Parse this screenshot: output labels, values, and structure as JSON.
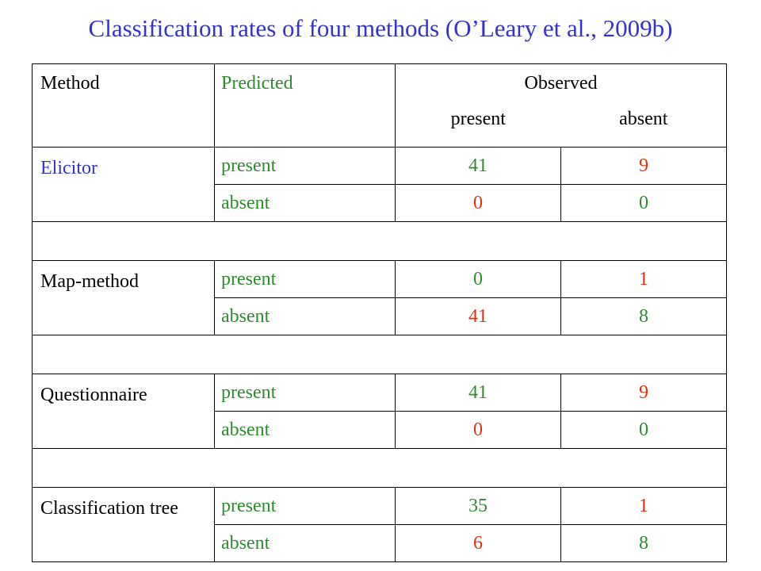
{
  "title": "Classification rates of four methods (O’Leary et al., 2009b)",
  "header": {
    "method": "Method",
    "predicted": "Predicted",
    "observed": "Observed",
    "present": "present",
    "absent": "absent"
  },
  "colors": {
    "title": "#3333cc",
    "predicted_label": "#2e8b2e",
    "observed_present_value": "#2e8b2e",
    "observed_absent_value": "#e03010",
    "highlight_method": "#3333cc"
  },
  "rows": [
    {
      "method": "Elicitor",
      "present_row": {
        "label": "present",
        "obs_present": "41",
        "obs_absent": "9"
      },
      "absent_row": {
        "label": "absent",
        "obs_present": "0",
        "obs_absent": "0"
      }
    },
    {
      "method": "Map-method",
      "present_row": {
        "label": "present",
        "obs_present": "0",
        "obs_absent": "1"
      },
      "absent_row": {
        "label": "absent",
        "obs_present": "41",
        "obs_absent": "8"
      }
    },
    {
      "method": "Questionnaire",
      "present_row": {
        "label": "present",
        "obs_present": "41",
        "obs_absent": "9"
      },
      "absent_row": {
        "label": "absent",
        "obs_present": "0",
        "obs_absent": "0"
      }
    },
    {
      "method": "Classification tree",
      "present_row": {
        "label": "present",
        "obs_present": "35",
        "obs_absent": "1"
      },
      "absent_row": {
        "label": "absent",
        "obs_present": "6",
        "obs_absent": "8"
      }
    }
  ]
}
